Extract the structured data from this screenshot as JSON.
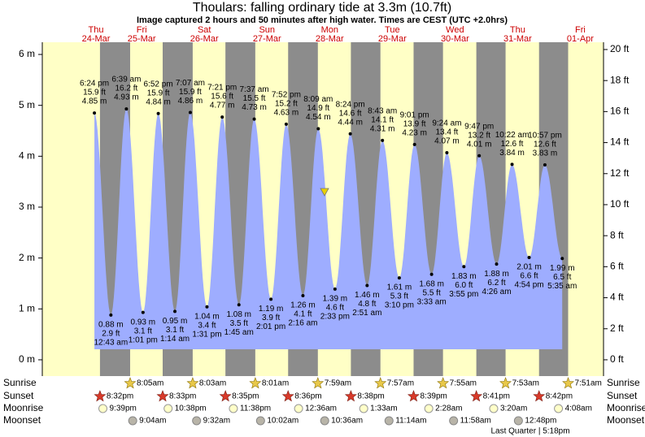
{
  "chart_data": {
    "type": "tide",
    "title": "Thoulars: falling  ordinary tide at 3.3m (10.7ft)",
    "subtitle": "Image captured 2 hours and 50 minutes after high water. Times are CEST (UTC +2.0hrs)",
    "ylim": [
      -0.32,
      6.24
    ],
    "yticks": [
      {
        "value": 0,
        "label": "0 m"
      },
      {
        "value": 1,
        "label": "1 m"
      },
      {
        "value": 2,
        "label": "2 m"
      },
      {
        "value": 3,
        "label": "3 m"
      },
      {
        "value": 4,
        "label": "4 m"
      },
      {
        "value": 5,
        "label": "5 m"
      },
      {
        "value": 6,
        "label": "6 m"
      }
    ],
    "y2lim": [
      -1.05,
      20.47
    ],
    "y2ticks": [
      {
        "value": 0,
        "label": "0 ft"
      },
      {
        "value": 2,
        "label": "2 ft"
      },
      {
        "value": 4,
        "label": "4 ft"
      },
      {
        "value": 6,
        "label": "6 ft"
      },
      {
        "value": 8,
        "label": "8 ft"
      },
      {
        "value": 10,
        "label": "10 ft"
      },
      {
        "value": 12,
        "label": "12 ft"
      },
      {
        "value": 14,
        "label": "14 ft"
      },
      {
        "value": 16,
        "label": "16 ft"
      },
      {
        "value": 18,
        "label": "18 ft"
      },
      {
        "value": 20,
        "label": "20 ft"
      }
    ],
    "row_labels": {
      "sunrise": "Sunrise",
      "sunset": "Sunset",
      "moonrise": "Moonrise",
      "moonset": "Moonset"
    },
    "moon_phase": "Last Quarter | 5:18pm",
    "colors": {
      "day": "#ffffc6",
      "night": "#8c8c8c",
      "tide": "#9eadff"
    },
    "days": [
      {
        "weekday": "Thu",
        "date": "24-Mar",
        "sunset": "8:32pm",
        "moonrise": "9:39pm",
        "tides": [
          {
            "time": "6:24 pm",
            "height": 4.85,
            "height_label": "4.85 m",
            "feet_label": "15.9 ft"
          }
        ]
      },
      {
        "weekday": "Fri",
        "date": "25-Mar",
        "sunrise": "8:05am",
        "sunset": "8:33pm",
        "moonrise": "10:38pm",
        "moonset": "9:04am",
        "tides": [
          {
            "time": "12:43 am",
            "height": 0.88,
            "height_label": "0.88 m",
            "feet_label": "2.9 ft"
          },
          {
            "time": "6:39 am",
            "height": 4.93,
            "height_label": "4.93 m",
            "feet_label": "16.2 ft"
          },
          {
            "time": "1:01 pm",
            "height": 0.93,
            "height_label": "0.93 m",
            "feet_label": "3.1 ft"
          },
          {
            "time": "6:52 pm",
            "height": 4.84,
            "height_label": "4.84 m",
            "feet_label": "15.9 ft"
          }
        ]
      },
      {
        "weekday": "Sat",
        "date": "26-Mar",
        "sunrise": "8:03am",
        "sunset": "8:35pm",
        "moonrise": "11:38pm",
        "moonset": "9:32am",
        "tides": [
          {
            "time": "1:14 am",
            "height": 0.95,
            "height_label": "0.95 m",
            "feet_label": "3.1 ft"
          },
          {
            "time": "7:07 am",
            "height": 4.86,
            "height_label": "4.86 m",
            "feet_label": "15.9 ft"
          },
          {
            "time": "1:31 pm",
            "height": 1.04,
            "height_label": "1.04 m",
            "feet_label": "3.4 ft"
          },
          {
            "time": "7:21 pm",
            "height": 4.77,
            "height_label": "4.77 m",
            "feet_label": "15.6 ft"
          }
        ]
      },
      {
        "weekday": "Sun",
        "date": "27-Mar",
        "sunrise": "8:01am",
        "sunset": "8:36pm",
        "moonset": "10:02am",
        "tides": [
          {
            "time": "1:45 am",
            "height": 1.08,
            "height_label": "1.08 m",
            "feet_label": "3.5 ft"
          },
          {
            "time": "7:37 am",
            "height": 4.73,
            "height_label": "4.73 m",
            "feet_label": "15.5 ft"
          },
          {
            "time": "2:01 pm",
            "height": 1.19,
            "height_label": "1.19 m",
            "feet_label": "3.9 ft"
          },
          {
            "time": "7:52 pm",
            "height": 4.63,
            "height_label": "4.63 m",
            "feet_label": "15.2 ft"
          }
        ]
      },
      {
        "weekday": "Mon",
        "date": "28-Mar",
        "sunrise": "7:59am",
        "sunset": "8:38pm",
        "moonrise": "12:36am",
        "moonset": "10:36am",
        "tides": [
          {
            "time": "2:16 am",
            "height": 1.26,
            "height_label": "1.26 m",
            "feet_label": "4.1 ft"
          },
          {
            "time": "8:09 am",
            "height": 4.54,
            "height_label": "4.54 m",
            "feet_label": "14.9 ft"
          },
          {
            "time": "2:33 pm",
            "height": 1.39,
            "height_label": "1.39 m",
            "feet_label": "4.6 ft"
          },
          {
            "time": "8:24 pm",
            "height": 4.44,
            "height_label": "4.44 m",
            "feet_label": "14.6 ft"
          }
        ]
      },
      {
        "weekday": "Tue",
        "date": "29-Mar",
        "sunrise": "7:57am",
        "sunset": "8:39pm",
        "moonrise": "1:33am",
        "moonset": "11:14am",
        "tides": [
          {
            "time": "2:51 am",
            "height": 1.46,
            "height_label": "1.46 m",
            "feet_label": "4.8 ft"
          },
          {
            "time": "8:43 am",
            "height": 4.31,
            "height_label": "4.31 m",
            "feet_label": "14.1 ft"
          },
          {
            "time": "3:10 pm",
            "height": 1.61,
            "height_label": "1.61 m",
            "feet_label": "5.3 ft"
          },
          {
            "time": "9:01 pm",
            "height": 4.23,
            "height_label": "4.23 m",
            "feet_label": "13.9 ft"
          }
        ]
      },
      {
        "weekday": "Wed",
        "date": "30-Mar",
        "sunrise": "7:55am",
        "sunset": "8:41pm",
        "moonrise": "2:28am",
        "moonset": "11:58am",
        "tides": [
          {
            "time": "3:33 am",
            "height": 1.68,
            "height_label": "1.68 m",
            "feet_label": "5.5 ft"
          },
          {
            "time": "9:24 am",
            "height": 4.07,
            "height_label": "4.07 m",
            "feet_label": "13.4 ft"
          },
          {
            "time": "3:55 pm",
            "height": 1.83,
            "height_label": "1.83 m",
            "feet_label": "6.0 ft"
          },
          {
            "time": "9:47 pm",
            "height": 4.01,
            "height_label": "4.01 m",
            "feet_label": "13.2 ft"
          }
        ]
      },
      {
        "weekday": "Thu",
        "date": "31-Mar",
        "sunrise": "7:53am",
        "sunset": "8:42pm",
        "moonrise": "3:20am",
        "moonset": "12:48pm",
        "tides": [
          {
            "time": "4:26 am",
            "height": 1.88,
            "height_label": "1.88 m",
            "feet_label": "6.2 ft"
          },
          {
            "time": "10:22 am",
            "height": 3.84,
            "height_label": "3.84 m",
            "feet_label": "12.6 ft"
          },
          {
            "time": "4:54 pm",
            "height": 2.01,
            "height_label": "2.01 m",
            "feet_label": "6.6 ft"
          },
          {
            "time": "10:57 pm",
            "height": 3.83,
            "height_label": "3.83 m",
            "feet_label": "12.6 ft"
          }
        ]
      },
      {
        "weekday": "Fri",
        "date": "01-Apr",
        "sunrise": "7:51am",
        "moonrise": "4:08am",
        "tides": [
          {
            "time": "5:35 am",
            "height": 1.99,
            "height_label": "1.99 m",
            "feet_label": "6.5 ft"
          }
        ]
      }
    ]
  }
}
